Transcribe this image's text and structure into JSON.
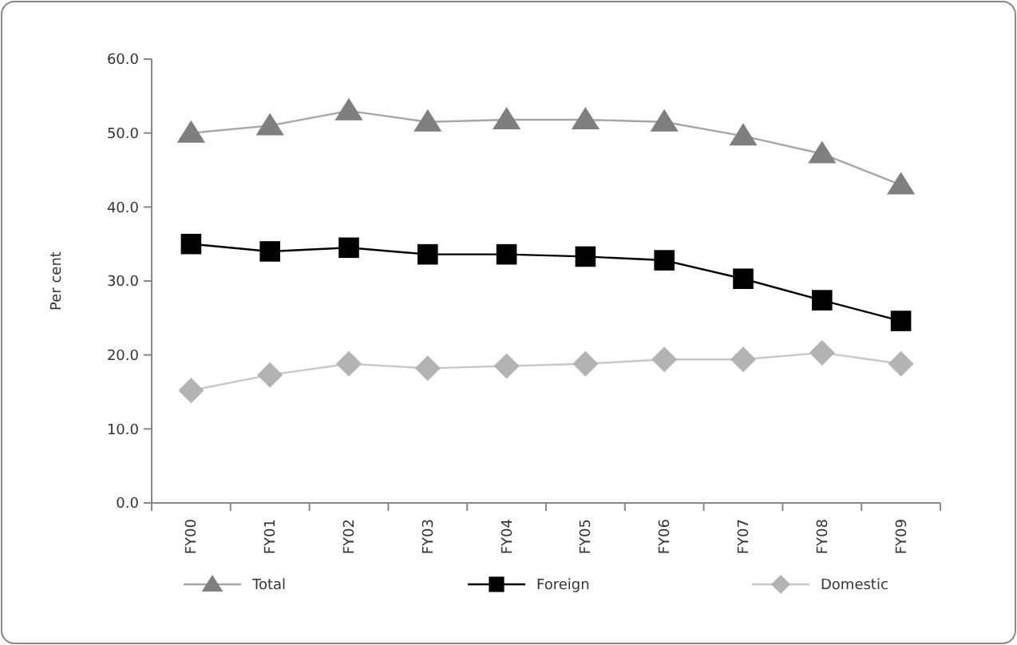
{
  "chart_data": {
    "type": "line",
    "ylabel": "Per cent",
    "categories": [
      "FY00",
      "FY01",
      "FY02",
      "FY03",
      "FY04",
      "FY05",
      "FY06",
      "FY07",
      "FY08",
      "FY09"
    ],
    "ylim": [
      0,
      60
    ],
    "yticks": [
      {
        "value": 0,
        "label": "0.0"
      },
      {
        "value": 10,
        "label": "10.0"
      },
      {
        "value": 20,
        "label": "20.0"
      },
      {
        "value": 30,
        "label": "30.0"
      },
      {
        "value": 40,
        "label": "40.0"
      },
      {
        "value": 50,
        "label": "50.0"
      },
      {
        "value": 60,
        "label": "60.0"
      }
    ],
    "grid": false,
    "legend": "bottom",
    "line_style": "solid",
    "series": [
      {
        "name": "Total",
        "color": "#7f7f7f",
        "marker": "triangle",
        "values": [
          50.0,
          51.0,
          53.0,
          51.5,
          51.8,
          51.8,
          51.5,
          49.6,
          47.2,
          43.0
        ]
      },
      {
        "name": "Foreign",
        "color": "#000000",
        "marker": "square",
        "values": [
          35.0,
          34.0,
          34.5,
          33.6,
          33.6,
          33.3,
          32.8,
          30.3,
          27.4,
          24.6
        ]
      },
      {
        "name": "Domestic",
        "color": "#b3b3b3",
        "marker": "diamond",
        "values": [
          15.2,
          17.3,
          18.8,
          18.2,
          18.5,
          18.8,
          19.4,
          19.4,
          20.3,
          18.8
        ]
      }
    ]
  }
}
